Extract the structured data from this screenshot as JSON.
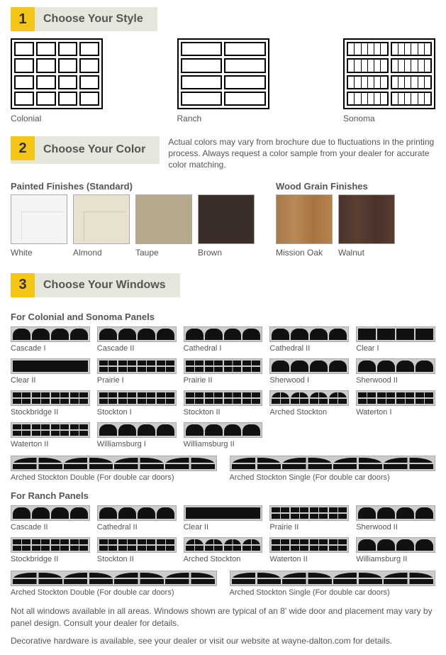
{
  "step1": {
    "num": "1",
    "title": "Choose Your Style"
  },
  "styles": [
    {
      "name": "Colonial",
      "type": "colonial"
    },
    {
      "name": "Ranch",
      "type": "ranch"
    },
    {
      "name": "Sonoma",
      "type": "sonoma"
    }
  ],
  "step2": {
    "num": "2",
    "title": "Choose Your Color"
  },
  "color_note": "Actual colors may vary from brochure due to fluctuations in the printing process. Always request a color sample from your dealer for accurate color matching.",
  "painted_title": "Painted Finishes (Standard)",
  "wood_title": "Wood Grain Finishes",
  "painted": [
    {
      "name": "White",
      "cls": "white"
    },
    {
      "name": "Almond",
      "cls": "almond"
    },
    {
      "name": "Taupe",
      "cls": "taupe"
    },
    {
      "name": "Brown",
      "cls": "brown"
    }
  ],
  "wood": [
    {
      "name": "Mission Oak",
      "cls": "oak"
    },
    {
      "name": "Walnut",
      "cls": "walnut"
    }
  ],
  "step3": {
    "num": "3",
    "title": "Choose Your Windows"
  },
  "cs_title": "For Colonial and Sonoma Panels",
  "cs_windows": [
    "Cascade I",
    "Cascade II",
    "Cathedral I",
    "Cathedral II",
    "Clear I",
    "Clear II",
    "Prairie I",
    "Prairie II",
    "Sherwood I",
    "Sherwood II",
    "Stockbridge II",
    "Stockton I",
    "Stockton II",
    "Arched Stockton",
    "Waterton I",
    "Waterton II",
    "Williamsburg I",
    "Williamsburg II"
  ],
  "cs_doubles": [
    "Arched Stockton Double (For double car doors)",
    "Arched Stockton Single (For double car doors)"
  ],
  "ranch_title": "For Ranch Panels",
  "ranch_windows": [
    "Cascade II",
    "Cathedral II",
    "Clear II",
    "Prairie II",
    "Sherwood II",
    "Stockbridge II",
    "Stockton II",
    "Arched Stockton",
    "Waterton II",
    "Williamsburg II"
  ],
  "ranch_doubles": [
    "Arched Stockton Double (For double car doors)",
    "Arched Stockton Single (For double car doors)"
  ],
  "disclaimer1": "Not all windows available in all areas. Windows shown are typical of an 8' wide door and placement may vary by panel design. Consult your dealer for details.",
  "disclaimer2": "Decorative hardware is available, see your dealer or visit our website at wayne-dalton.com for details.",
  "accent_color": "#f5c518",
  "bg_band": "#e5e7dd"
}
